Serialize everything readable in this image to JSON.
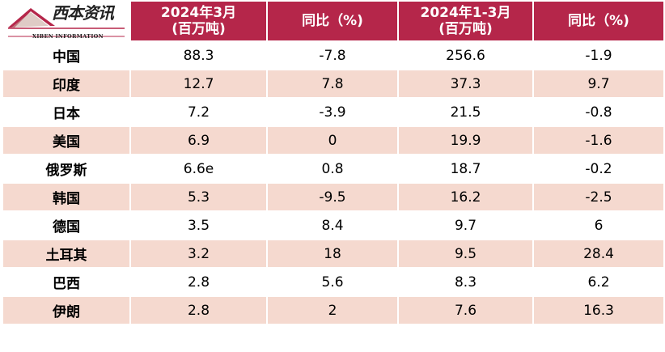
{
  "logo": {
    "cn": "西本资讯",
    "en": "XIBEN INFORMATION"
  },
  "header": {
    "col1": {
      "line1": "2024年3月",
      "line2": "(百万吨)"
    },
    "col2": {
      "line1": "同比（%)"
    },
    "col3": {
      "line1": "2024年1-3月",
      "line2": "(百万吨)"
    },
    "col4": {
      "line1": "同比（%)"
    }
  },
  "rows": [
    {
      "country": "中国",
      "mar": "88.3",
      "yoy_mar": "-7.8",
      "q1": "256.6",
      "yoy_q1": "-1.9"
    },
    {
      "country": "印度",
      "mar": "12.7",
      "yoy_mar": "7.8",
      "q1": "37.3",
      "yoy_q1": "9.7"
    },
    {
      "country": "日本",
      "mar": "7.2",
      "yoy_mar": "-3.9",
      "q1": "21.5",
      "yoy_q1": "-0.8"
    },
    {
      "country": "美国",
      "mar": "6.9",
      "yoy_mar": "0",
      "q1": "19.9",
      "yoy_q1": "-1.6"
    },
    {
      "country": "俄罗斯",
      "mar": "6.6e",
      "yoy_mar": "0.8",
      "q1": "18.7",
      "yoy_q1": "-0.2"
    },
    {
      "country": "韩国",
      "mar": "5.3",
      "yoy_mar": "-9.5",
      "q1": "16.2",
      "yoy_q1": "-2.5"
    },
    {
      "country": "德国",
      "mar": "3.5",
      "yoy_mar": "8.4",
      "q1": "9.7",
      "yoy_q1": "6"
    },
    {
      "country": "土耳其",
      "mar": "3.2",
      "yoy_mar": "18",
      "q1": "9.5",
      "yoy_q1": "28.4"
    },
    {
      "country": "巴西",
      "mar": "2.8",
      "yoy_mar": "5.6",
      "q1": "8.3",
      "yoy_q1": "6.2"
    },
    {
      "country": "伊朗",
      "mar": "2.8",
      "yoy_mar": "2",
      "q1": "7.6",
      "yoy_q1": "16.3"
    }
  ]
}
